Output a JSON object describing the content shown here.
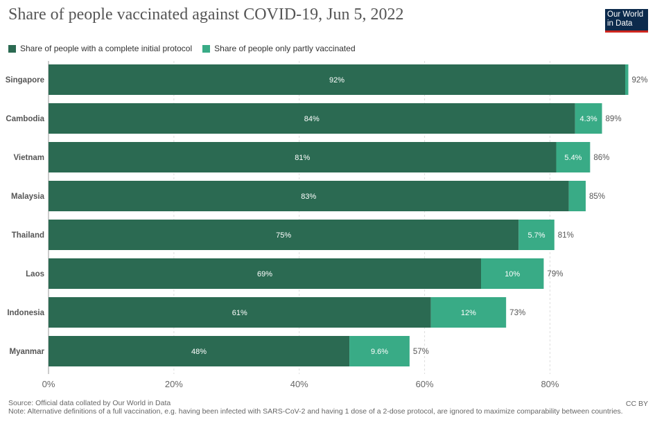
{
  "title": "Share of people vaccinated against COVID-19, Jun 5, 2022",
  "logo": {
    "line1": "Our World",
    "line2": "in Data"
  },
  "colors": {
    "complete": "#2b6a52",
    "partial": "#39ab86",
    "logo_bg": "#0c2a4c",
    "logo_bar": "#ce261e"
  },
  "chart_data": {
    "type": "bar",
    "orientation": "horizontal",
    "stacked": true,
    "categories": [
      "Singapore",
      "Cambodia",
      "Vietnam",
      "Malaysia",
      "Thailand",
      "Laos",
      "Indonesia",
      "Myanmar"
    ],
    "series": [
      {
        "name": "Share of people with a complete initial protocol",
        "values": [
          92,
          84,
          81,
          83,
          75,
          69,
          61,
          48
        ],
        "labels": [
          "92%",
          "84%",
          "81%",
          "83%",
          "75%",
          "69%",
          "61%",
          "48%"
        ]
      },
      {
        "name": "Share of people only partly vaccinated",
        "values": [
          0.5,
          4.3,
          5.4,
          2.7,
          5.7,
          10,
          12,
          9.6
        ],
        "labels": [
          "",
          "4.3%",
          "5.4%",
          "",
          "5.7%",
          "10%",
          "12%",
          "9.6%"
        ]
      }
    ],
    "totals": [
      "92%",
      "89%",
      "86%",
      "85%",
      "81%",
      "79%",
      "73%",
      "57%"
    ],
    "xlim": [
      0,
      92
    ],
    "xticks": [
      0,
      20,
      40,
      60,
      80
    ],
    "xtick_labels": [
      "0%",
      "20%",
      "40%",
      "60%",
      "80%"
    ],
    "grid": true,
    "legend": "top-left"
  },
  "footer": {
    "source": "Source: Official data collated by Our World in Data",
    "note": "Note: Alternative definitions of a full vaccination, e.g. having been infected with SARS-CoV-2 and having 1 dose of a 2-dose protocol, are ignored to maximize comparability between countries.",
    "license": "CC BY"
  }
}
